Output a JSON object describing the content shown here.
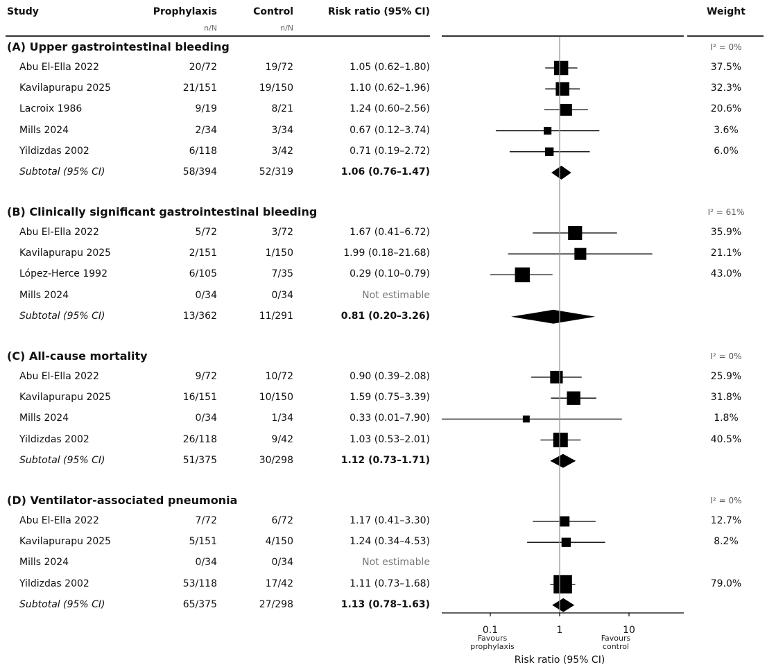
{
  "headers": {
    "study": "Study",
    "prophylaxis": "Prophylaxis",
    "control": "Control",
    "rr": "Risk ratio (95% CI)",
    "weight": "Weight",
    "nN_prophylaxis": "n/N",
    "nN_control": "n/N"
  },
  "sections": [
    {
      "title": "(A) Upper gastrointestinal bleeding",
      "i2": "I² = 0%",
      "rows": [
        {
          "study": "Abu El-Ella 2022",
          "prophylaxis": "20/72",
          "control": "19/72",
          "rr_text": "1.05 (0.62–1.80)",
          "weight": "37.5%",
          "rr": 1.05,
          "lo": 0.62,
          "hi": 1.8,
          "w": 37.5
        },
        {
          "study": "Kavilapurapu 2025",
          "prophylaxis": "21/151",
          "control": "19/150",
          "rr_text": "1.10 (0.62–1.96)",
          "weight": "32.3%",
          "rr": 1.1,
          "lo": 0.62,
          "hi": 1.96,
          "w": 32.3
        },
        {
          "study": "Lacroix 1986",
          "prophylaxis": "9/19",
          "control": "8/21",
          "rr_text": "1.24 (0.60–2.56)",
          "weight": "20.6%",
          "rr": 1.24,
          "lo": 0.6,
          "hi": 2.56,
          "w": 20.6
        },
        {
          "study": "Mills 2024",
          "prophylaxis": "2/34",
          "control": "3/34",
          "rr_text": "0.67 (0.12–3.74)",
          "weight": "3.6%",
          "rr": 0.67,
          "lo": 0.12,
          "hi": 3.74,
          "w": 3.6
        },
        {
          "study": "Yildizdas 2002",
          "prophylaxis": "6/118",
          "control": "3/42",
          "rr_text": "0.71 (0.19–2.72)",
          "weight": "6.0%",
          "rr": 0.71,
          "lo": 0.19,
          "hi": 2.72,
          "w": 6.0
        }
      ],
      "subtotal": {
        "label": "Subtotal (95% CI)",
        "prophylaxis": "58/394",
        "control": "52/319",
        "rr_text": "1.06 (0.76–1.47)",
        "rr": 1.06,
        "lo": 0.76,
        "hi": 1.47
      }
    },
    {
      "title": "(B) Clinically significant gastrointestinal bleeding",
      "i2": "I² = 61%",
      "rows": [
        {
          "study": "Abu El-Ella 2022",
          "prophylaxis": "5/72",
          "control": "3/72",
          "rr_text": "1.67 (0.41–6.72)",
          "weight": "35.9%",
          "rr": 1.67,
          "lo": 0.41,
          "hi": 6.72,
          "w": 35.9
        },
        {
          "study": "Kavilapurapu 2025",
          "prophylaxis": "2/151",
          "control": "1/150",
          "rr_text": "1.99 (0.18–21.68)",
          "weight": "21.1%",
          "rr": 1.99,
          "lo": 0.18,
          "hi": 21.68,
          "w": 21.1
        },
        {
          "study": "López-Herce 1992",
          "prophylaxis": "6/105",
          "control": "7/35",
          "rr_text": "0.29 (0.10–0.79)",
          "weight": "43.0%",
          "rr": 0.29,
          "lo": 0.1,
          "hi": 0.79,
          "w": 43.0
        },
        {
          "study": "Mills 2024",
          "prophylaxis": "0/34",
          "control": "0/34",
          "rr_text": "Not estimable",
          "weight": "",
          "rr": null,
          "lo": null,
          "hi": null,
          "w": null
        }
      ],
      "subtotal": {
        "label": "Subtotal (95% CI)",
        "prophylaxis": "13/362",
        "control": "11/291",
        "rr_text": "0.81 (0.20–3.26)",
        "rr": 0.81,
        "lo": 0.2,
        "hi": 3.26
      }
    },
    {
      "title": "(C) All-cause mortality",
      "i2": "I² = 0%",
      "rows": [
        {
          "study": "Abu El-Ella 2022",
          "prophylaxis": "9/72",
          "control": "10/72",
          "rr_text": "0.90 (0.39–2.08)",
          "weight": "25.9%",
          "rr": 0.9,
          "lo": 0.39,
          "hi": 2.08,
          "w": 25.9
        },
        {
          "study": "Kavilapurapu 2025",
          "prophylaxis": "16/151",
          "control": "10/150",
          "rr_text": "1.59 (0.75–3.39)",
          "weight": "31.8%",
          "rr": 1.59,
          "lo": 0.75,
          "hi": 3.39,
          "w": 31.8
        },
        {
          "study": "Mills 2024",
          "prophylaxis": "0/34",
          "control": "1/34",
          "rr_text": "0.33 (0.01–7.90)",
          "weight": "1.8%",
          "rr": 0.33,
          "lo": 0.01,
          "hi": 7.9,
          "w": 1.8
        },
        {
          "study": "Yildizdas 2002",
          "prophylaxis": "26/118",
          "control": "9/42",
          "rr_text": "1.03 (0.53–2.01)",
          "weight": "40.5%",
          "rr": 1.03,
          "lo": 0.53,
          "hi": 2.01,
          "w": 40.5
        }
      ],
      "subtotal": {
        "label": "Subtotal (95% CI)",
        "prophylaxis": "51/375",
        "control": "30/298",
        "rr_text": "1.12 (0.73–1.71)",
        "rr": 1.12,
        "lo": 0.73,
        "hi": 1.71
      }
    },
    {
      "title": "(D) Ventilator-associated pneumonia",
      "i2": "I² = 0%",
      "rows": [
        {
          "study": "Abu El-Ella 2022",
          "prophylaxis": "7/72",
          "control": "6/72",
          "rr_text": "1.17 (0.41–3.30)",
          "weight": "12.7%",
          "rr": 1.17,
          "lo": 0.41,
          "hi": 3.3,
          "w": 12.7
        },
        {
          "study": "Kavilapurapu 2025",
          "prophylaxis": "5/151",
          "control": "4/150",
          "rr_text": "1.24 (0.34–4.53)",
          "weight": "8.2%",
          "rr": 1.24,
          "lo": 0.34,
          "hi": 4.53,
          "w": 8.2
        },
        {
          "study": "Mills 2024",
          "prophylaxis": "0/34",
          "control": "0/34",
          "rr_text": "Not estimable",
          "weight": "",
          "rr": null,
          "lo": null,
          "hi": null,
          "w": null
        },
        {
          "study": "Yildizdas 2002",
          "prophylaxis": "53/118",
          "control": "17/42",
          "rr_text": "1.11 (0.73–1.68)",
          "weight": "79.0%",
          "rr": 1.11,
          "lo": 0.73,
          "hi": 1.68,
          "w": 79.0
        }
      ],
      "subtotal": {
        "label": "Subtotal (95% CI)",
        "prophylaxis": "65/375",
        "control": "27/298",
        "rr_text": "1.13 (0.78–1.63)",
        "rr": 1.13,
        "lo": 0.78,
        "hi": 1.63
      }
    }
  ],
  "chart_data": {
    "type": "scatter",
    "scale": "log",
    "xlim": [
      0.01,
      50
    ],
    "xticks": [
      0.1,
      1,
      10
    ],
    "xtick_labels": [
      "0.1",
      "1",
      "10"
    ],
    "xlabel": "Risk ratio (95% CI)",
    "left_label": "Favours\nprophylaxis",
    "right_label": "Favours\ncontrol",
    "reference_line": 1,
    "marker_color": "#000000",
    "grid": false
  }
}
